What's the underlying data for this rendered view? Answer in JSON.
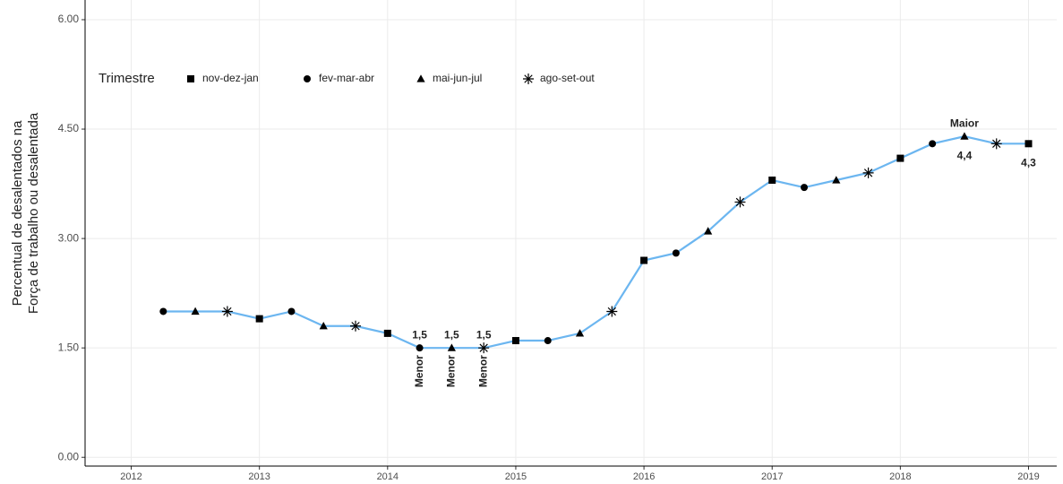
{
  "chart_data": {
    "type": "line",
    "ylabel": [
      "Percentual de desalentados na",
      "Força de trabalho ou desalentada"
    ],
    "legend": {
      "title": "Trimestre",
      "entries": [
        "nov-dez-jan",
        "fev-mar-abr",
        "mai-jun-jul",
        "ago-set-out"
      ],
      "shapes": [
        "square",
        "circle",
        "triangle",
        "asterisk"
      ]
    },
    "x": [
      2012.25,
      2012.5,
      2012.75,
      2013,
      2013.25,
      2013.5,
      2013.75,
      2014,
      2014.25,
      2014.5,
      2014.75,
      2015,
      2015.25,
      2015.5,
      2015.75,
      2016,
      2016.25,
      2016.5,
      2016.75,
      2017,
      2017.25,
      2017.5,
      2017.75,
      2018,
      2018.25,
      2018.5,
      2018.75,
      2019
    ],
    "values": [
      2.0,
      2.0,
      2.0,
      1.9,
      2.0,
      1.8,
      1.8,
      1.7,
      1.5,
      1.5,
      1.5,
      1.6,
      1.6,
      1.7,
      2.0,
      2.7,
      2.8,
      3.1,
      3.5,
      3.8,
      3.7,
      3.8,
      3.9,
      4.1,
      4.3,
      4.4,
      4.3,
      4.3
    ],
    "trimestre": [
      1,
      2,
      3,
      0,
      1,
      2,
      3,
      0,
      1,
      2,
      3,
      0,
      1,
      2,
      3,
      0,
      1,
      2,
      3,
      0,
      1,
      2,
      3,
      0,
      1,
      2,
      3,
      0
    ],
    "value_labels": [
      null,
      null,
      null,
      null,
      null,
      null,
      null,
      null,
      "1,5",
      "1,5",
      "1,5",
      null,
      null,
      null,
      null,
      null,
      null,
      null,
      null,
      null,
      null,
      null,
      null,
      null,
      null,
      "4,4",
      null,
      "4,3"
    ],
    "notes": [
      null,
      null,
      null,
      null,
      null,
      null,
      null,
      null,
      "Menor",
      "Menor",
      "Menor",
      null,
      null,
      null,
      null,
      null,
      null,
      null,
      null,
      null,
      null,
      null,
      null,
      null,
      null,
      "Maior",
      null,
      null
    ],
    "color": "#6cb6f0",
    "marker_color": "#000000",
    "xlim": [
      2011.64,
      2019.22
    ],
    "xticks": [
      2012,
      2013,
      2014,
      2015,
      2016,
      2017,
      2018,
      2019
    ],
    "ylim": [
      -0.12,
      6.27
    ],
    "yticks": [
      {
        "value": 0,
        "label": "0.00"
      },
      {
        "value": 1.5,
        "label": "1.50"
      },
      {
        "value": 3,
        "label": "3.00"
      },
      {
        "value": 4.5,
        "label": "4.50"
      },
      {
        "value": 6,
        "label": "6.00"
      }
    ],
    "grid": true
  }
}
